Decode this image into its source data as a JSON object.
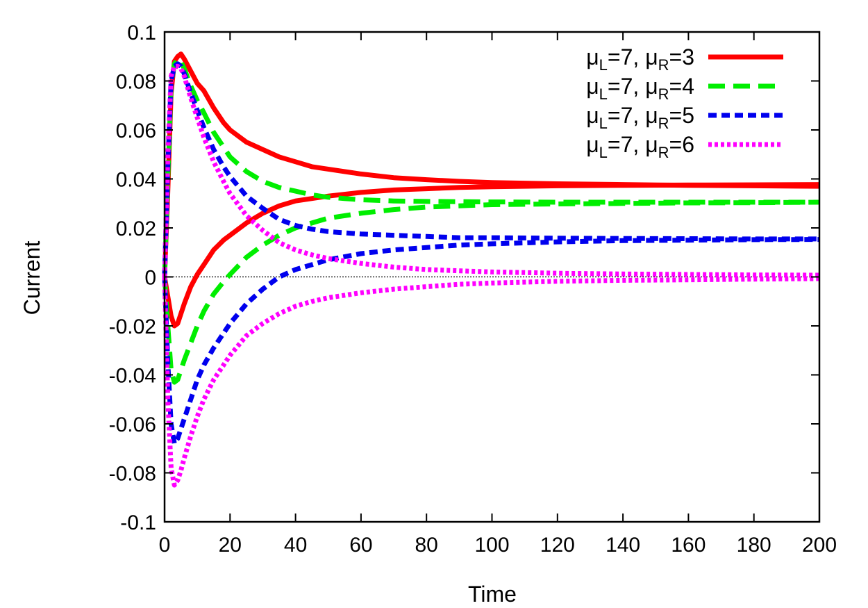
{
  "chart_data": {
    "type": "line",
    "title": "",
    "xlabel": "Time",
    "ylabel": "Current",
    "xlim": [
      0,
      200
    ],
    "ylim": [
      -0.1,
      0.1
    ],
    "xticks": [
      "0",
      "20",
      "40",
      "60",
      "80",
      "100",
      "120",
      "140",
      "160",
      "180",
      "200"
    ],
    "yticks": [
      "-0.1",
      "-0.08",
      "-0.06",
      "-0.04",
      "-0.02",
      "0",
      "0.02",
      "0.04",
      "0.06",
      "0.08",
      "0.1"
    ],
    "grid": false,
    "zero_line": true,
    "legend_position": "top-right",
    "series": [
      {
        "name": "μL=7, μR=3",
        "legend": {
          "mu": "μ",
          "sub1": "L",
          "mid": "=7, ",
          "mu2": "μ",
          "sub2": "R",
          "end": "=3"
        },
        "color": "#ff0000",
        "dash": "solid",
        "curves": [
          {
            "x": [
              0,
              1,
              2,
              3,
              4,
              5,
              6,
              8,
              10,
              12,
              15,
              18,
              20,
              25,
              30,
              35,
              40,
              45,
              50,
              60,
              70,
              80,
              90,
              100,
              120,
              140,
              160,
              180,
              200
            ],
            "y": [
              0,
              0.035,
              0.075,
              0.088,
              0.09,
              0.091,
              0.089,
              0.084,
              0.079,
              0.076,
              0.069,
              0.063,
              0.06,
              0.055,
              0.052,
              0.049,
              0.047,
              0.045,
              0.044,
              0.042,
              0.0405,
              0.0397,
              0.039,
              0.0385,
              0.038,
              0.0377,
              0.0374,
              0.0372,
              0.037
            ]
          },
          {
            "x": [
              0,
              1,
              2,
              3,
              4,
              5,
              6,
              8,
              10,
              12,
              15,
              18,
              20,
              25,
              30,
              35,
              40,
              45,
              50,
              60,
              70,
              80,
              90,
              100,
              120,
              140,
              160,
              180,
              200
            ],
            "y": [
              0,
              -0.008,
              -0.016,
              -0.02,
              -0.019,
              -0.015,
              -0.011,
              -0.004,
              0.001,
              0.005,
              0.011,
              0.015,
              0.017,
              0.022,
              0.026,
              0.029,
              0.031,
              0.032,
              0.033,
              0.0345,
              0.0355,
              0.036,
              0.0365,
              0.0368,
              0.0372,
              0.0374,
              0.0375,
              0.0376,
              0.0377
            ]
          }
        ]
      },
      {
        "name": "μL=7, μR=4",
        "legend": {
          "mu": "μ",
          "sub1": "L",
          "mid": "=7, ",
          "mu2": "μ",
          "sub2": "R",
          "end": "=4"
        },
        "color": "#00ee00",
        "dash": "long",
        "curves": [
          {
            "x": [
              0,
              1,
              2,
              3,
              4,
              5,
              6,
              8,
              10,
              12,
              15,
              18,
              20,
              25,
              30,
              35,
              40,
              45,
              50,
              55,
              60,
              70,
              80,
              100,
              120,
              140,
              160,
              180,
              200
            ],
            "y": [
              0,
              0.04,
              0.078,
              0.087,
              0.089,
              0.088,
              0.085,
              0.078,
              0.072,
              0.067,
              0.059,
              0.053,
              0.049,
              0.043,
              0.039,
              0.0365,
              0.035,
              0.0335,
              0.0325,
              0.032,
              0.0315,
              0.031,
              0.0308,
              0.0306,
              0.0305,
              0.0305,
              0.0305,
              0.0305,
              0.0305
            ]
          },
          {
            "x": [
              0,
              1,
              2,
              3,
              4,
              5,
              6,
              8,
              10,
              12,
              15,
              18,
              20,
              25,
              30,
              35,
              40,
              45,
              50,
              60,
              70,
              80,
              90,
              100,
              120,
              140,
              160,
              180,
              200
            ],
            "y": [
              0,
              -0.02,
              -0.038,
              -0.043,
              -0.042,
              -0.038,
              -0.034,
              -0.027,
              -0.02,
              -0.014,
              -0.007,
              -0.002,
              0.001,
              0.008,
              0.013,
              0.017,
              0.02,
              0.022,
              0.024,
              0.026,
              0.0275,
              0.0285,
              0.029,
              0.0295,
              0.0298,
              0.03,
              0.0302,
              0.0303,
              0.0305
            ]
          }
        ]
      },
      {
        "name": "μL=7, μR=5",
        "legend": {
          "mu": "μ",
          "sub1": "L",
          "mid": "=7, ",
          "mu2": "μ",
          "sub2": "R",
          "end": "=5"
        },
        "color": "#0000ee",
        "dash": "medium",
        "curves": [
          {
            "x": [
              0,
              1,
              2,
              3,
              4,
              5,
              6,
              8,
              10,
              12,
              15,
              18,
              20,
              25,
              30,
              35,
              40,
              45,
              50,
              60,
              70,
              80,
              90,
              100,
              120,
              140,
              160,
              180,
              200
            ],
            "y": [
              0,
              0.045,
              0.08,
              0.086,
              0.087,
              0.086,
              0.083,
              0.075,
              0.068,
              0.061,
              0.052,
              0.045,
              0.041,
              0.033,
              0.028,
              0.0235,
              0.021,
              0.0195,
              0.0185,
              0.0175,
              0.017,
              0.0165,
              0.016,
              0.016,
              0.0158,
              0.0157,
              0.0156,
              0.0155,
              0.0155
            ]
          },
          {
            "x": [
              0,
              1,
              2,
              3,
              4,
              5,
              6,
              8,
              10,
              12,
              15,
              18,
              20,
              25,
              30,
              35,
              40,
              45,
              50,
              60,
              70,
              80,
              90,
              100,
              120,
              140,
              160,
              180,
              200
            ],
            "y": [
              0,
              -0.035,
              -0.06,
              -0.068,
              -0.066,
              -0.062,
              -0.058,
              -0.05,
              -0.042,
              -0.036,
              -0.029,
              -0.023,
              -0.019,
              -0.011,
              -0.005,
              0.0,
              0.003,
              0.005,
              0.007,
              0.0095,
              0.011,
              0.012,
              0.013,
              0.0135,
              0.0143,
              0.0148,
              0.015,
              0.0152,
              0.0153
            ]
          }
        ]
      },
      {
        "name": "μL=7, μR=6",
        "legend": {
          "mu": "μ",
          "sub1": "L",
          "mid": "=7, ",
          "mu2": "μ",
          "sub2": "R",
          "end": "=6"
        },
        "color": "#ff00ff",
        "dash": "dotted",
        "curves": [
          {
            "x": [
              0,
              1,
              2,
              3,
              4,
              5,
              6,
              8,
              10,
              12,
              15,
              18,
              20,
              25,
              30,
              35,
              40,
              45,
              50,
              60,
              70,
              80,
              90,
              100,
              120,
              140,
              160,
              180,
              200
            ],
            "y": [
              0,
              0.05,
              0.082,
              0.086,
              0.086,
              0.085,
              0.082,
              0.073,
              0.065,
              0.057,
              0.047,
              0.039,
              0.034,
              0.025,
              0.019,
              0.014,
              0.011,
              0.009,
              0.0075,
              0.0055,
              0.004,
              0.003,
              0.0025,
              0.002,
              0.0015,
              0.0012,
              0.001,
              0.0008,
              0.0007
            ]
          },
          {
            "x": [
              0,
              1,
              2,
              3,
              4,
              5,
              6,
              8,
              10,
              12,
              15,
              18,
              20,
              25,
              30,
              35,
              40,
              45,
              50,
              60,
              70,
              80,
              90,
              100,
              120,
              140,
              160,
              180,
              200
            ],
            "y": [
              0,
              -0.05,
              -0.078,
              -0.085,
              -0.083,
              -0.079,
              -0.074,
              -0.065,
              -0.057,
              -0.05,
              -0.042,
              -0.036,
              -0.032,
              -0.024,
              -0.019,
              -0.015,
              -0.012,
              -0.01,
              -0.0085,
              -0.0065,
              -0.005,
              -0.004,
              -0.003,
              -0.0025,
              -0.0018,
              -0.0014,
              -0.0012,
              -0.0009,
              -0.0007
            ]
          }
        ]
      }
    ]
  }
}
